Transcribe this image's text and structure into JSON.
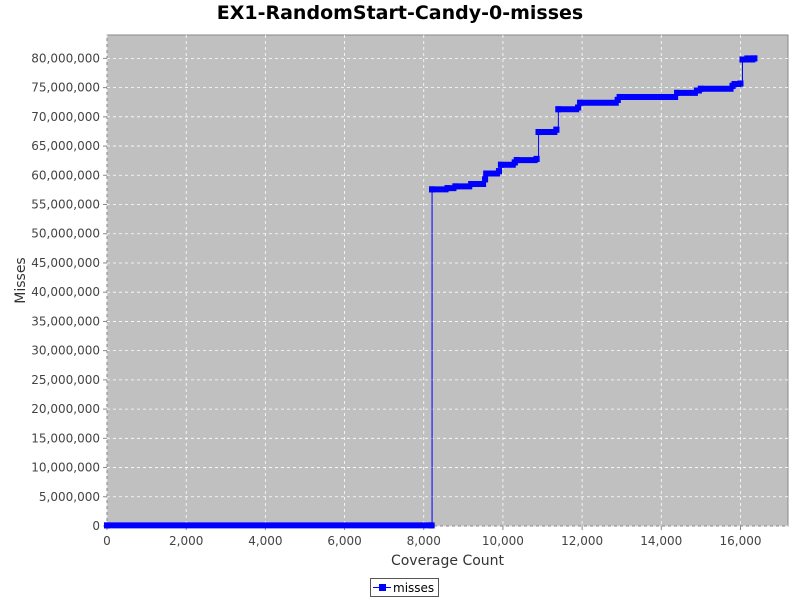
{
  "chart_data": {
    "type": "line",
    "title": "EX1-RandomStart-Candy-0-misses",
    "xlabel": "Coverage Count",
    "ylabel": "Misses",
    "xlim": [
      0,
      17200
    ],
    "ylim": [
      0,
      84000000
    ],
    "x_ticks": [
      0,
      2000,
      4000,
      6000,
      8000,
      10000,
      12000,
      14000,
      16000
    ],
    "x_tick_labels": [
      "0",
      "2,000",
      "4,000",
      "6,000",
      "8,000",
      "10,000",
      "12,000",
      "14,000",
      "16,000"
    ],
    "y_ticks": [
      0,
      5000000,
      10000000,
      15000000,
      20000000,
      25000000,
      30000000,
      35000000,
      40000000,
      45000000,
      50000000,
      55000000,
      60000000,
      65000000,
      70000000,
      75000000,
      80000000
    ],
    "y_tick_labels": [
      "0",
      "5,000,000",
      "10,000,000",
      "15,000,000",
      "20,000,000",
      "25,000,000",
      "30,000,000",
      "35,000,000",
      "40,000,000",
      "45,000,000",
      "50,000,000",
      "55,000,000",
      "60,000,000",
      "65,000,000",
      "70,000,000",
      "75,000,000",
      "80,000,000"
    ],
    "grid": true,
    "legend_position": "bottom",
    "colors": {
      "series": "#0000ff",
      "plot_background": "#c0c0c0",
      "grid": "#ffffff"
    },
    "series": [
      {
        "name": "misses",
        "points": [
          [
            0,
            100000
          ],
          [
            8200,
            100000
          ],
          [
            8210,
            57600000
          ],
          [
            8600,
            57800000
          ],
          [
            8800,
            58100000
          ],
          [
            9200,
            58500000
          ],
          [
            9550,
            59300000
          ],
          [
            9580,
            60300000
          ],
          [
            9900,
            60700000
          ],
          [
            9950,
            61800000
          ],
          [
            10300,
            62200000
          ],
          [
            10350,
            62600000
          ],
          [
            10850,
            62800000
          ],
          [
            10900,
            67400000
          ],
          [
            11350,
            67800000
          ],
          [
            11400,
            71300000
          ],
          [
            11900,
            71600000
          ],
          [
            11950,
            72400000
          ],
          [
            12900,
            72900000
          ],
          [
            12950,
            73400000
          ],
          [
            14400,
            74100000
          ],
          [
            14900,
            74500000
          ],
          [
            15000,
            74800000
          ],
          [
            15800,
            75300000
          ],
          [
            15850,
            75600000
          ],
          [
            16000,
            75700000
          ],
          [
            16050,
            79800000
          ],
          [
            16350,
            80000000
          ]
        ]
      }
    ]
  }
}
